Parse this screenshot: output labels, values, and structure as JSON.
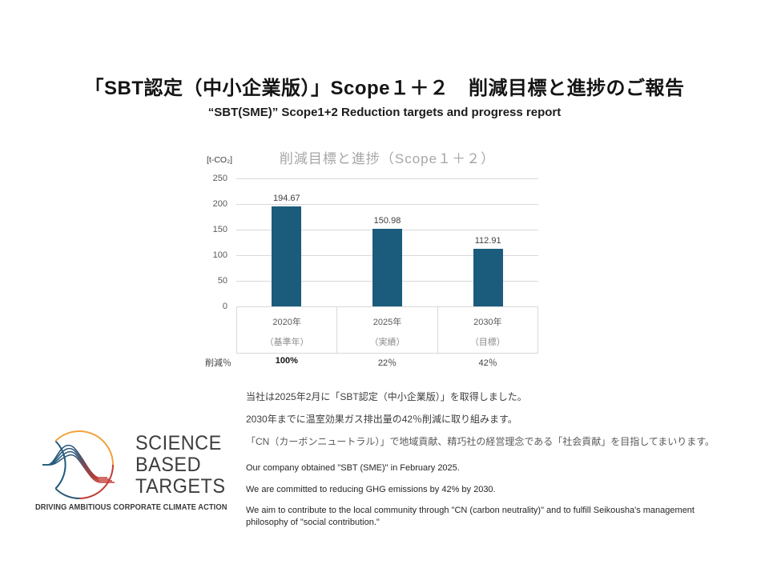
{
  "slide": {
    "title": "「SBT認定（中小企業版）」Scope１＋２　削減目標と進捗のご報告",
    "subtitle": "“SBT(SME)” Scope1+2  Reduction targets and progress report"
  },
  "chart_data": {
    "type": "bar",
    "title": "削減目標と進捗（Scope１＋２）",
    "unit_label": "[t-CO₂]",
    "categories": [
      "2020年",
      "2025年",
      "2030年"
    ],
    "category_notes": [
      "（基準年）",
      "（実績）",
      "（目標）"
    ],
    "values": [
      194.67,
      150.98,
      112.91
    ],
    "value_labels": [
      "194.67",
      "150.98",
      "112.91"
    ],
    "reduction_label": "削減％",
    "reduction_values": [
      "100%",
      "22％",
      "42％"
    ],
    "yticks": [
      250,
      200,
      150,
      100,
      50,
      0
    ],
    "ylim": [
      0,
      250
    ],
    "bar_color": "#1B5C7D",
    "grid": true,
    "legend": false
  },
  "body": {
    "jp": [
      "当社は2025年2月に「SBT認定（中小企業版）」を取得しました。",
      "2030年までに温室効果ガス排出量の42％削減に取り組みます。",
      "「CN（カーボンニュートラル）」で地域貢献、精巧社の経営理念である「社会貢献」を目指してまいります。"
    ],
    "en": [
      "Our company obtained \"SBT (SME)\" in February 2025.",
      "We are committed to reducing GHG emissions by 42% by 2030.",
      "We aim to contribute to the local community through \"CN (carbon neutrality)\" and to fulfill Seikousha's management philosophy of \"social contribution.\""
    ]
  },
  "logo": {
    "words": [
      "SCIENCE",
      "BASED",
      "TARGETS"
    ],
    "tagline": "DRIVING AMBITIOUS CORPORATE CLIMATE ACTION",
    "colors": {
      "teal": "#1F5B7D",
      "orange": "#F2A23A",
      "red": "#C23B33"
    }
  }
}
